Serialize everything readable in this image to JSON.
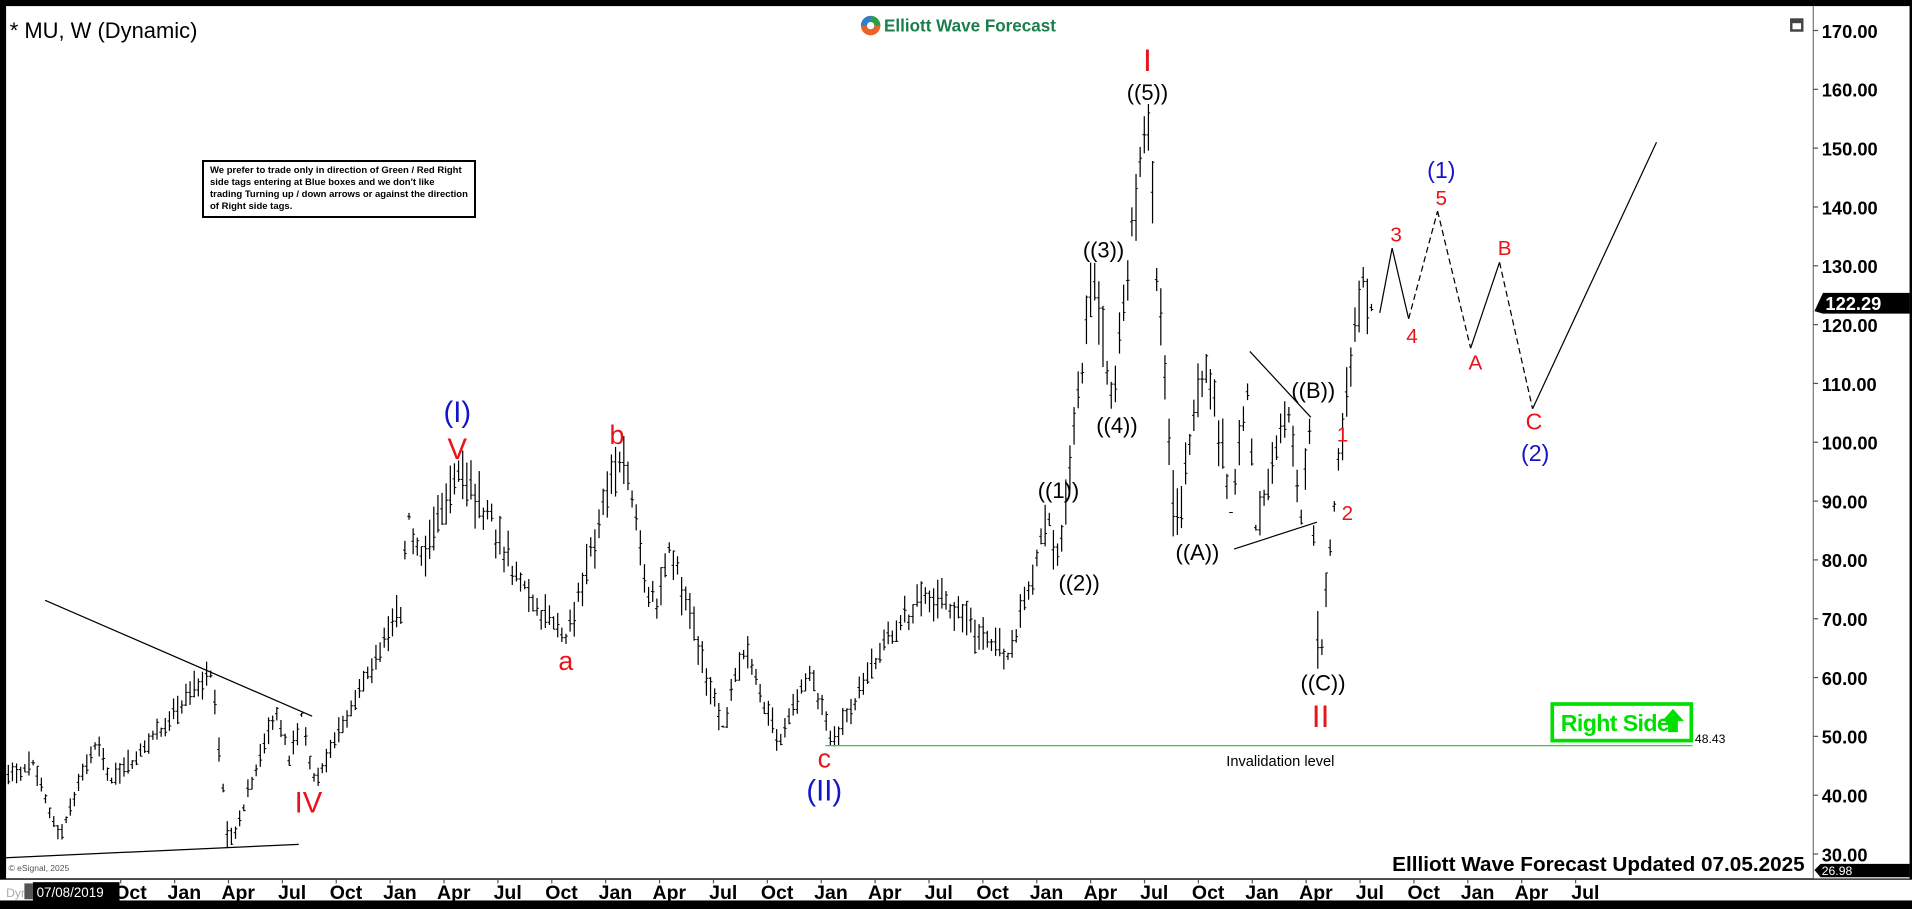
{
  "header": {
    "title": "* MU, W (Dynamic)",
    "logo_text": "Elliott Wave Forecast",
    "footer_text": "Ellliott Wave Forecast Updated 07.05.2025",
    "copyright": "© eSignal, 2025",
    "dyn_label": "Dyn",
    "cursor_date": "07/08/2019"
  },
  "note": "We prefer to trade only in direction of Green / Red Right side tags entering at Blue boxes and we don't like trading Turning up / down arrows or against the direction of Right side tags.",
  "right_side_tag": {
    "label": "Right Side",
    "icon": "arrow-up-icon",
    "color": "#00e000"
  },
  "invalidation": {
    "label": "Invalidation level",
    "price": 48.43,
    "price_label": "48.43",
    "color": "#33cc33"
  },
  "price_tags": {
    "last": "122.29",
    "low": "26.98"
  },
  "colors": {
    "red": "#e8141c",
    "blue": "#1414c8",
    "black": "#000000",
    "green": "#00e000",
    "logo_green": "#1a7f4b"
  },
  "wave_labels": [
    {
      "text": "(I)",
      "color": "blue"
    },
    {
      "text": "V",
      "color": "red"
    },
    {
      "text": "a",
      "color": "red"
    },
    {
      "text": "b",
      "color": "red"
    },
    {
      "text": "c",
      "color": "red"
    },
    {
      "text": "(II)",
      "color": "blue"
    },
    {
      "text": "IV",
      "color": "red"
    },
    {
      "text": "((1))",
      "color": "black"
    },
    {
      "text": "((2))",
      "color": "black"
    },
    {
      "text": "((3))",
      "color": "black"
    },
    {
      "text": "((4))",
      "color": "black"
    },
    {
      "text": "((5))",
      "color": "black"
    },
    {
      "text": "I",
      "color": "red"
    },
    {
      "text": "((A))",
      "color": "black"
    },
    {
      "text": "((B))",
      "color": "black"
    },
    {
      "text": "((C))",
      "color": "black"
    },
    {
      "text": "II",
      "color": "red"
    },
    {
      "text": "1",
      "color": "red"
    },
    {
      "text": "2",
      "color": "red"
    },
    {
      "text": "3",
      "color": "red"
    },
    {
      "text": "4",
      "color": "red"
    },
    {
      "text": "(1)",
      "color": "blue"
    },
    {
      "text": "5",
      "color": "red"
    },
    {
      "text": "A",
      "color": "red"
    },
    {
      "text": "B",
      "color": "red"
    },
    {
      "text": "C",
      "color": "red"
    },
    {
      "text": "(2)",
      "color": "blue"
    }
  ],
  "chart_data": {
    "type": "ohlc-bar",
    "symbol": "MU",
    "interval": "W",
    "ylim": [
      26.98,
      172
    ],
    "y_ticks": [
      "30.00",
      "40.00",
      "50.00",
      "60.00",
      "70.00",
      "80.00",
      "90.00",
      "100.00",
      "110.00",
      "120.00",
      "130.00",
      "140.00",
      "150.00",
      "160.00",
      "170.00"
    ],
    "x_ticks": [
      "Oct",
      "Jan",
      "Apr",
      "Jul",
      "Oct",
      "Jan",
      "Apr",
      "Jul",
      "Oct",
      "Jan",
      "Apr",
      "Jul",
      "Oct",
      "Jan",
      "Apr",
      "Jul",
      "Oct",
      "Jan",
      "Apr",
      "Jul",
      "Oct",
      "Jan",
      "Apr",
      "Jul",
      "Oct",
      "Jan",
      "Apr",
      "Jul"
    ],
    "price_path": [
      [
        "2019-03-01",
        42
      ],
      [
        "2019-04-20",
        46
      ],
      [
        "2019-06-01",
        32.5
      ],
      [
        "2019-08-01",
        49
      ],
      [
        "2019-08-30",
        42
      ],
      [
        "2020-02-14",
        61.2
      ],
      [
        "2020-03-16",
        31.1
      ],
      [
        "2020-06-05",
        55
      ],
      [
        "2020-06-26",
        45
      ],
      [
        "2020-07-17",
        54
      ],
      [
        "2020-08-07",
        42.3
      ],
      [
        "2021-01-01",
        72
      ],
      [
        "2021-01-15",
        88
      ],
      [
        "2021-02-05",
        79
      ],
      [
        "2021-04-09",
        96.9
      ],
      [
        "2021-07-30",
        75
      ],
      [
        "2021-10-08",
        65.7
      ],
      [
        "2022-01-07",
        98.4
      ],
      [
        "2022-03-10",
        70
      ],
      [
        "2022-04-01",
        83
      ],
      [
        "2022-07-01",
        51.5
      ],
      [
        "2022-08-05",
        64.7
      ],
      [
        "2022-10-07",
        48.5
      ],
      [
        "2022-11-25",
        62
      ],
      [
        "2022-12-30",
        48.43
      ],
      [
        "2023-04-15",
        68
      ],
      [
        "2023-06-16",
        74.8
      ],
      [
        "2023-10-27",
        63
      ],
      [
        "2024-01-05",
        88
      ],
      [
        "2024-01-19",
        79
      ],
      [
        "2024-03-22",
        130.5
      ],
      [
        "2024-04-19",
        105.7
      ],
      [
        "2024-06-18",
        157.5
      ],
      [
        "2024-08-05",
        84
      ],
      [
        "2024-09-27",
        115
      ],
      [
        "2024-11-08",
        88
      ],
      [
        "2024-12-06",
        110
      ],
      [
        "2024-12-20",
        85
      ],
      [
        "2025-02-14",
        106
      ],
      [
        "2025-03-07",
        86
      ],
      [
        "2025-03-21",
        104
      ],
      [
        "2025-04-07",
        61.5
      ],
      [
        "2025-05-01",
        90
      ],
      [
        "2025-06-20",
        129.8
      ],
      [
        "2025-07-04",
        122.29
      ]
    ],
    "projection": [
      [
        "2025-07-18",
        122
      ],
      [
        "2025-08-08",
        133
      ],
      [
        "2025-09-05",
        121
      ],
      [
        "2025-10-24",
        139.3
      ],
      [
        "2025-12-19",
        116
      ],
      [
        "2026-02-06",
        130.6
      ],
      [
        "2026-04-03",
        105.7
      ],
      [
        "2026-10-30",
        151
      ]
    ],
    "projection_dashed_segments": [
      2,
      3,
      5
    ]
  }
}
